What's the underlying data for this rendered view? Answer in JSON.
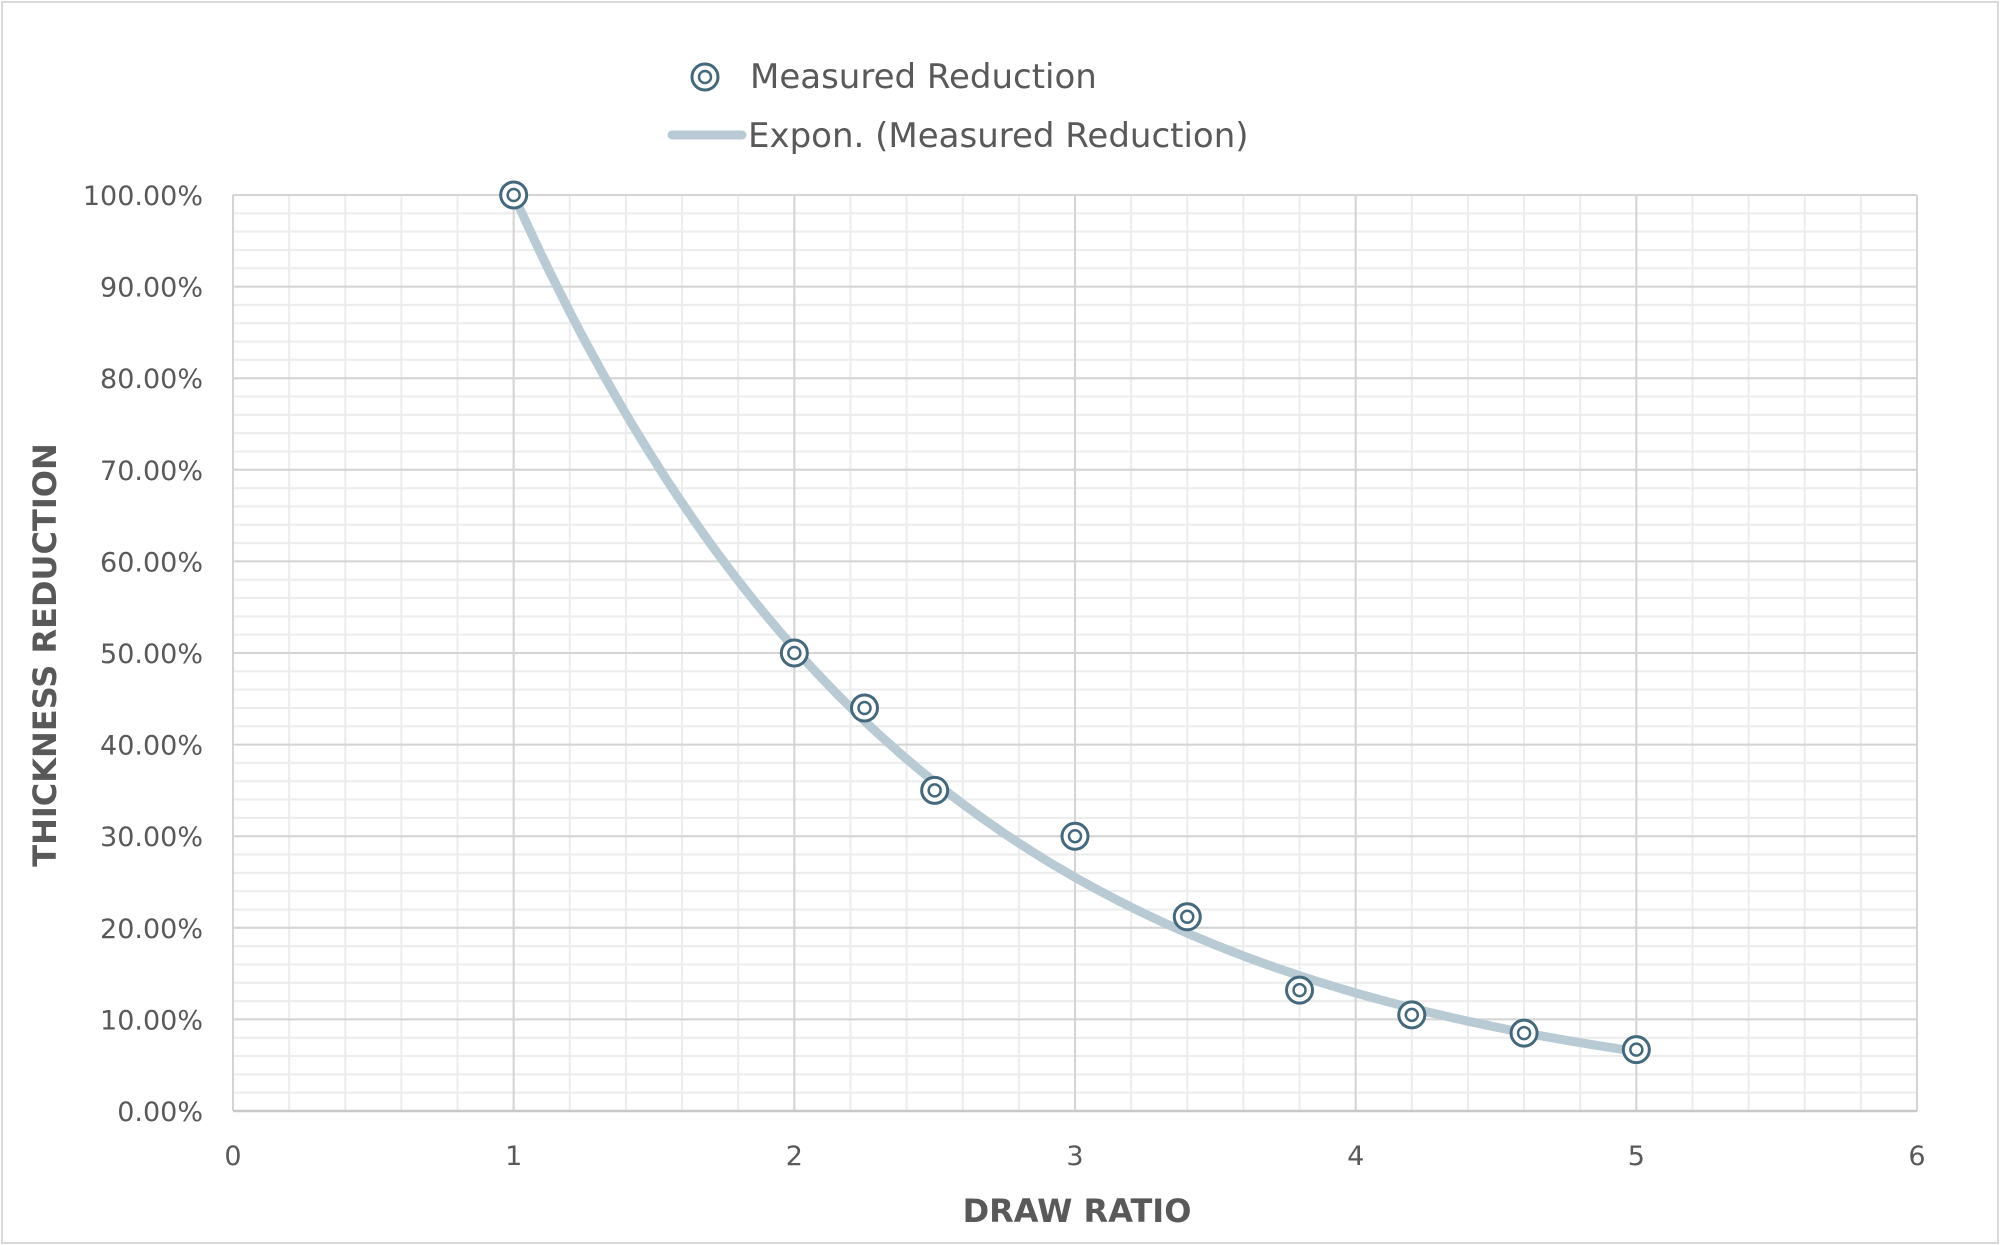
{
  "chart_data": {
    "type": "scatter",
    "title": "",
    "xlabel": "DRAW RATIO",
    "ylabel": "THICKNESS REDUCTION",
    "xlim": [
      0,
      6
    ],
    "ylim": [
      0,
      1
    ],
    "x_major_step": 1,
    "x_minor_step": 0.2,
    "y_major_step": 0.1,
    "y_minor_step": 0.02,
    "grid": true,
    "legend_position": "top",
    "x_tick_labels": [
      "0",
      "1",
      "2",
      "3",
      "4",
      "5",
      "6"
    ],
    "y_tick_labels": [
      "0.00%",
      "10.00%",
      "20.00%",
      "30.00%",
      "40.00%",
      "50.00%",
      "60.00%",
      "70.00%",
      "80.00%",
      "90.00%",
      "100.00%"
    ],
    "series": [
      {
        "name": "Measured Reduction",
        "type": "scatter",
        "color": "#44697d",
        "x": [
          1,
          2,
          2.25,
          2.5,
          3,
          3.4,
          3.8,
          4.2,
          4.6,
          5
        ],
        "y": [
          1.0,
          0.5,
          0.44,
          0.35,
          0.3,
          0.212,
          0.132,
          0.105,
          0.085,
          0.067
        ]
      },
      {
        "name": "Expon. (Measured Reduction)",
        "type": "trendline-exponential",
        "color": "#b8cad3",
        "a": 1.98,
        "b": -0.683,
        "x_range": [
          1,
          5
        ]
      }
    ]
  }
}
